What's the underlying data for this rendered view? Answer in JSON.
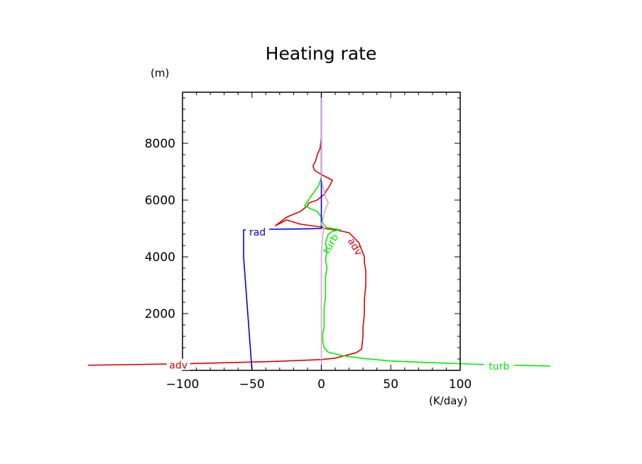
{
  "chart_data": {
    "type": "line",
    "title": "Heating rate",
    "xlabel": "(K/day)",
    "ylabel": "(m)",
    "xlim": [
      -100,
      100
    ],
    "ylim": [
      0,
      9800
    ],
    "xticks": [
      -100,
      -50,
      0,
      50,
      100
    ],
    "yticks": [
      2000,
      4000,
      6000,
      8000
    ],
    "x_tick_labels": [
      "−100",
      "−50",
      "0",
      "50",
      "100"
    ],
    "y_tick_labels": [
      "2000",
      "4000",
      "6000",
      "8000"
    ],
    "grid": false,
    "legend": "inline labels",
    "series": [
      {
        "name": "adv",
        "color": "#dd0000",
        "x": [
          -168,
          -100,
          -60,
          -30,
          0,
          10,
          17,
          25,
          29,
          30,
          30,
          31,
          31,
          32,
          32,
          31,
          31,
          27,
          20,
          10,
          5,
          2,
          0,
          -15,
          -25,
          -33,
          -25,
          -15,
          -10,
          -9,
          -3,
          2,
          6,
          8,
          0,
          -5,
          -6,
          -4,
          -3,
          -1,
          0,
          0,
          0,
          0
        ],
        "y": [
          180,
          230,
          280,
          320,
          380,
          430,
          520,
          620,
          750,
          1200,
          1500,
          2000,
          2500,
          3000,
          3500,
          3800,
          4000,
          4500,
          4850,
          4950,
          4980,
          5000,
          5050,
          5150,
          5300,
          5100,
          5400,
          5600,
          5800,
          5900,
          6000,
          6200,
          6500,
          6700,
          6900,
          7050,
          7200,
          7400,
          7600,
          7800,
          8200,
          8600,
          9200,
          9800
        ]
      },
      {
        "name": "turb",
        "color": "#00ee00",
        "x": [
          165,
          120,
          80,
          50,
          30,
          15,
          5,
          2,
          1,
          1,
          2,
          2,
          2,
          3,
          3,
          3,
          4,
          3,
          4,
          3,
          5,
          8,
          14,
          8,
          3,
          1,
          0,
          -3,
          -8,
          -12,
          -10,
          -8,
          -5,
          -2,
          0,
          0,
          0,
          0,
          0
        ],
        "y": [
          150,
          200,
          270,
          330,
          420,
          520,
          640,
          800,
          1000,
          1300,
          1500,
          1800,
          2200,
          2600,
          3000,
          3300,
          3600,
          3900,
          4200,
          4500,
          4800,
          4900,
          4950,
          5000,
          5050,
          5200,
          5400,
          5600,
          5700,
          5800,
          5950,
          6100,
          6300,
          6500,
          6800,
          7200,
          8000,
          9000,
          9800
        ]
      },
      {
        "name": "rad",
        "color": "#0000dd",
        "x": [
          -50,
          -53,
          -56,
          -56,
          -40,
          -20,
          -8,
          0,
          0,
          0,
          0,
          0,
          0,
          0
        ],
        "y": [
          0,
          2000,
          4000,
          4950,
          4970,
          4980,
          4990,
          5000,
          5200,
          5600,
          6000,
          6800,
          8000,
          9800
        ]
      },
      {
        "name": "",
        "color": "#dda0dd",
        "x": [
          0,
          0,
          0,
          1,
          2,
          0,
          1,
          2,
          3,
          5,
          3,
          2,
          1,
          0,
          0,
          0,
          0
        ],
        "y": [
          0,
          2000,
          4000,
          4800,
          5000,
          5150,
          5300,
          5500,
          5700,
          5900,
          6100,
          6300,
          6500,
          6800,
          7500,
          8500,
          9800
        ]
      }
    ],
    "annotations": [
      {
        "text": "adv",
        "series": "adv",
        "x": -103,
        "y": 160,
        "rotate": 0
      },
      {
        "text": "turb",
        "series": "turb",
        "x": 128,
        "y": 130,
        "rotate": 0
      },
      {
        "text": "rad",
        "series": "rad",
        "x": -46,
        "y": 4850,
        "rotate": 0
      },
      {
        "text": "turb",
        "series": "turb",
        "x": 7,
        "y": 4450,
        "rotate": -60
      },
      {
        "text": "adv",
        "series": "adv",
        "x": 24,
        "y": 4350,
        "rotate": 60
      }
    ]
  }
}
